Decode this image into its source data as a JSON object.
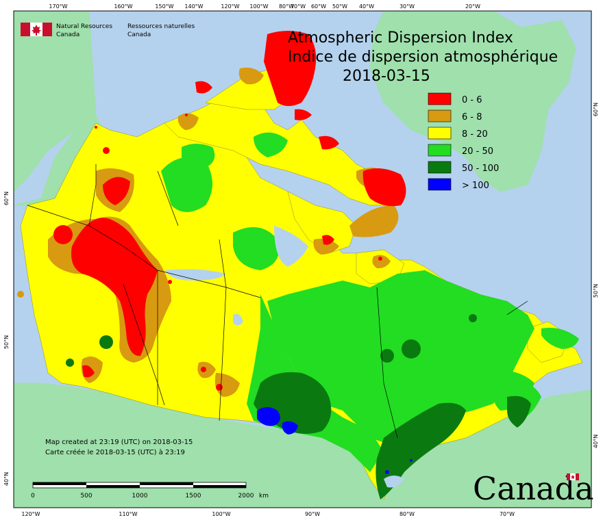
{
  "title": {
    "line1": "Atmospheric Dispersion Index",
    "line2": "Indice de dispersion atmosphérique",
    "date": "2018-03-15"
  },
  "org": {
    "en_line1": "Natural Resources",
    "en_line2": "Canada",
    "fr_line1": "Ressources naturelles",
    "fr_line2": "Canada"
  },
  "legend": [
    {
      "label": "0 - 6",
      "color": "#ff0000"
    },
    {
      "label": "6 - 8",
      "color": "#d89a10"
    },
    {
      "label": "8 - 20",
      "color": "#ffff00"
    },
    {
      "label": "20 - 50",
      "color": "#22dd22"
    },
    {
      "label": "50 - 100",
      "color": "#0a7a10"
    },
    {
      "label": "> 100",
      "color": "#0000ff"
    }
  ],
  "top_ticks": [
    "170°W",
    "160°W",
    "150°W",
    "140°W",
    "120°W",
    "100°W",
    "80°W",
    "70°W",
    "60°W",
    "50°W",
    "40°W",
    "30°W",
    "20°W"
  ],
  "bottom_ticks": [
    "120°W",
    "110°W",
    "100°W",
    "90°W",
    "80°W",
    "70°W"
  ],
  "left_ticks": [
    "60°N",
    "50°N",
    "40°N"
  ],
  "right_ticks": [
    "60°N",
    "50°N",
    "40°N"
  ],
  "note": {
    "line1": "Map created at 23:19 (UTC) on 2018-03-15",
    "line2": "Carte créée le 2018-03-15 (UTC) à 23:19"
  },
  "scale": {
    "labels": [
      "0",
      "500",
      "1000",
      "1500",
      "2000"
    ],
    "unit": "km"
  },
  "wordmark": "Canada",
  "colors": {
    "ocean": "#b4d2ee",
    "land_outside": "#9fe0ac",
    "border": "#000000"
  }
}
